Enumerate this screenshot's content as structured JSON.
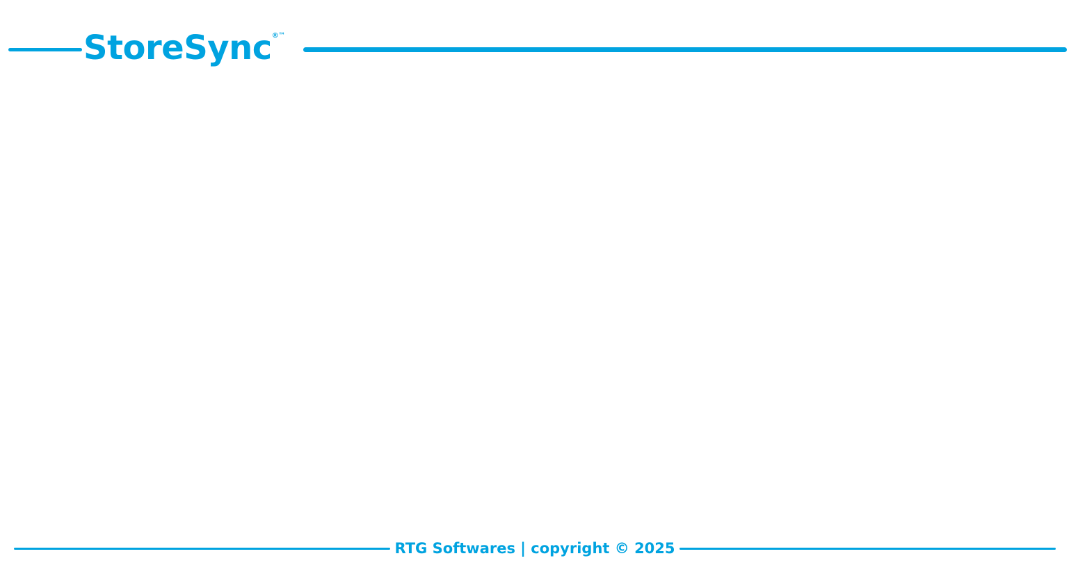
{
  "theme": {
    "accent": "#00a3e0"
  },
  "header": {
    "logo_text": "StoreSync",
    "logo_marks": "®™"
  },
  "footer": {
    "text": "RTG Softwares | copyright © 2025"
  }
}
